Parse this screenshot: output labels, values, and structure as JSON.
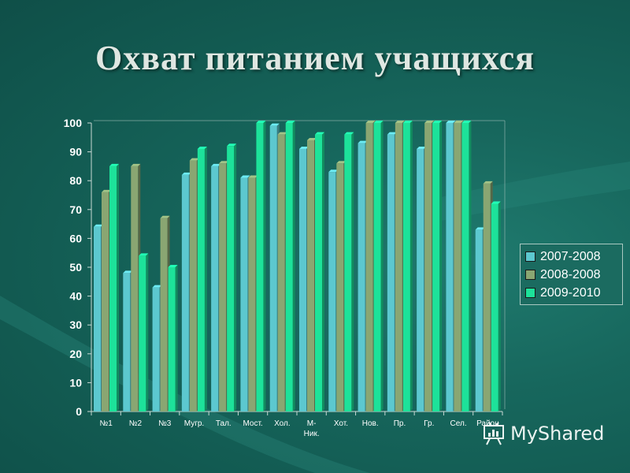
{
  "title": "Охват питанием учащихся",
  "brand": "MyShared",
  "colors": {
    "series": [
      "#5cc8cf",
      "#8aa672",
      "#1de29a"
    ],
    "axis": "#c9d9d4",
    "tick_text": "#ffffff",
    "grid": "#9fbfb8"
  },
  "chart_data": {
    "type": "bar",
    "categories": [
      "№1",
      "№2",
      "№3",
      "Мугр.",
      "Тал.",
      "Мост.",
      "Хол.",
      "М-Ник.",
      "Хот.",
      "Нов.",
      "Пр.",
      "Гр.",
      "Сел.",
      "Район"
    ],
    "category_lines": [
      [
        "№1"
      ],
      [
        "№2"
      ],
      [
        "№3"
      ],
      [
        "Мугр."
      ],
      [
        "Тал."
      ],
      [
        "Мост."
      ],
      [
        "Хол."
      ],
      [
        "М-",
        "Ник."
      ],
      [
        "Хот."
      ],
      [
        "Нов."
      ],
      [
        "Пр."
      ],
      [
        "Гр."
      ],
      [
        "Сел."
      ],
      [
        "Район"
      ]
    ],
    "series": [
      {
        "name": "2007-2008",
        "values": [
          64,
          48,
          43,
          82,
          85,
          81,
          99,
          91,
          83,
          93,
          96,
          91,
          100,
          63
        ]
      },
      {
        "name": "2008-2008",
        "values": [
          76,
          85,
          67,
          87,
          86,
          81,
          96,
          94,
          86,
          100,
          100,
          100,
          100,
          79
        ]
      },
      {
        "name": "2009-2010",
        "values": [
          85,
          54,
          50,
          91,
          92,
          100,
          100,
          96,
          96,
          100,
          100,
          100,
          100,
          72
        ]
      }
    ],
    "y_ticks": [
      "0",
      "10",
      "20",
      "30",
      "40",
      "50",
      "60",
      "70",
      "80",
      "90",
      "100"
    ],
    "ylim": [
      0,
      100
    ],
    "grid": false,
    "legend_position": "right"
  }
}
